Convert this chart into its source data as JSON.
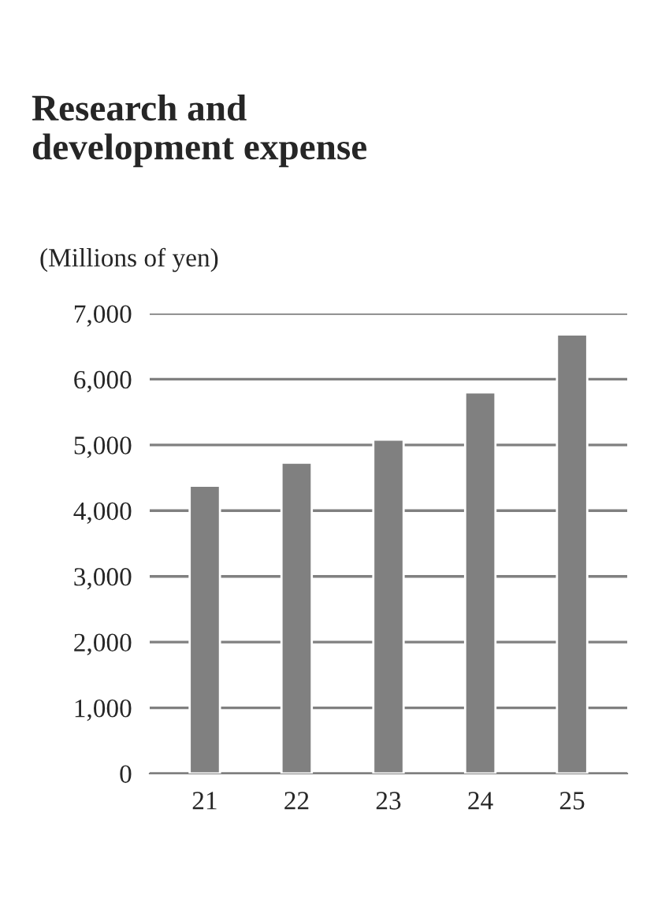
{
  "chart_data": {
    "type": "bar",
    "title": "Research and\ndevelopment expense",
    "ylabel": "(Millions of yen)",
    "categories": [
      "21",
      "22",
      "23",
      "24",
      "25"
    ],
    "values": [
      4380,
      4730,
      5080,
      5800,
      6680
    ],
    "color": "#808080",
    "ylim": [
      0,
      7000
    ],
    "yticks": [
      {
        "value": 0,
        "label": "0"
      },
      {
        "value": 1000,
        "label": "1,000"
      },
      {
        "value": 2000,
        "label": "2,000"
      },
      {
        "value": 3000,
        "label": "3,000"
      },
      {
        "value": 4000,
        "label": "4,000"
      },
      {
        "value": 5000,
        "label": "5,000"
      },
      {
        "value": 6000,
        "label": "6,000"
      },
      {
        "value": 7000,
        "label": "7,000"
      }
    ],
    "grid": "y"
  }
}
